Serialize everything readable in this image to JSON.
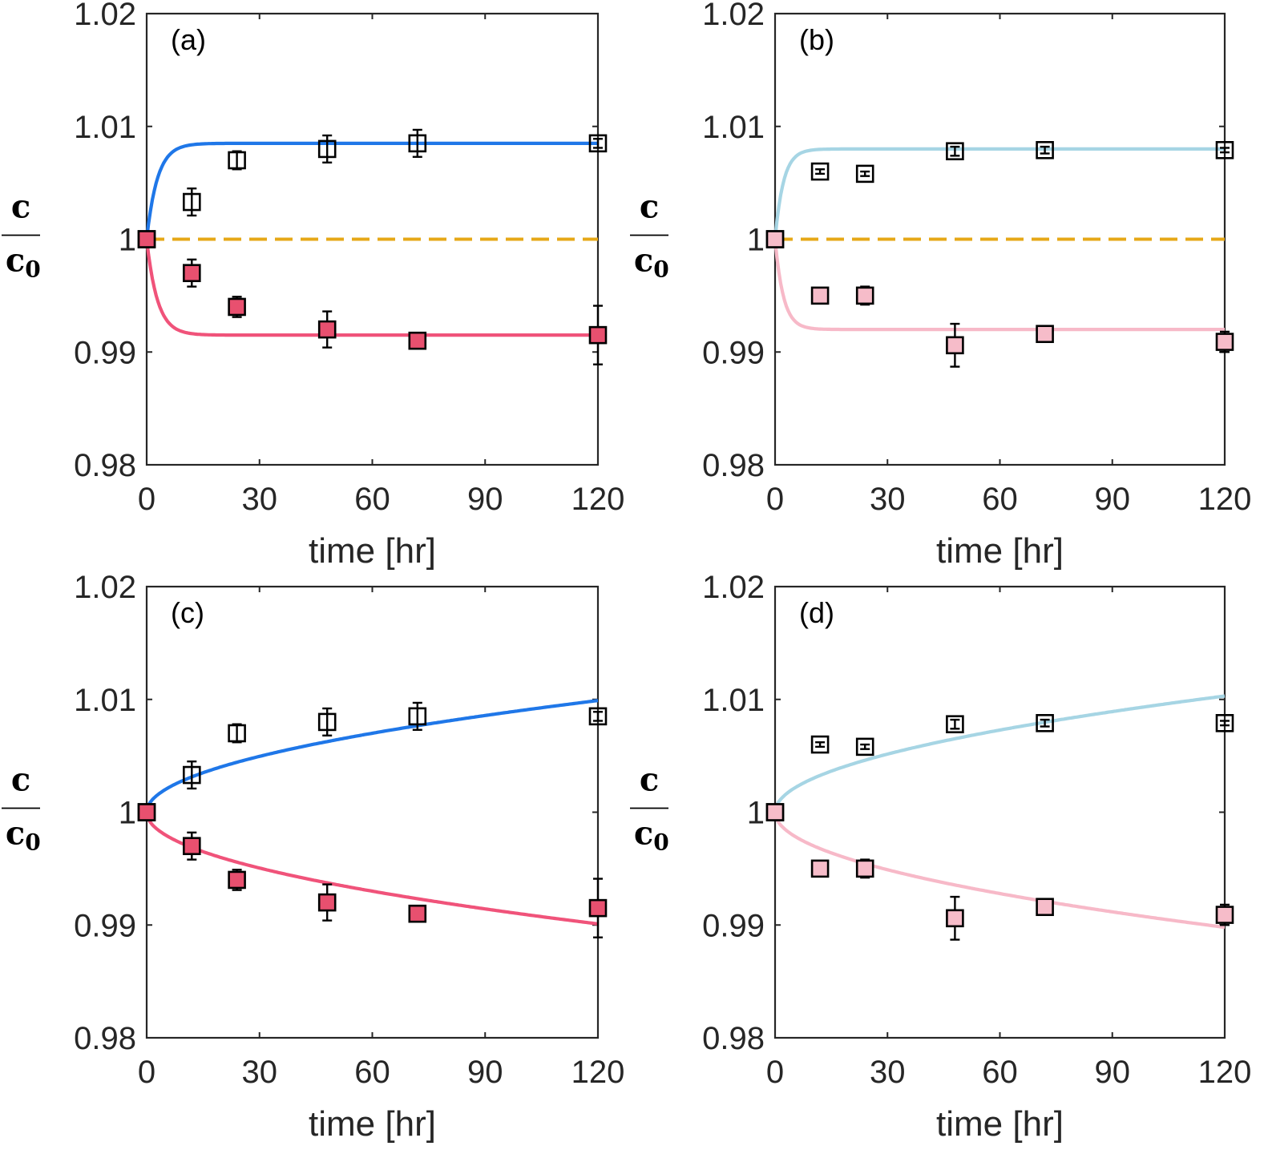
{
  "chart_data": [
    {
      "panel": "(a)",
      "type": "scatter",
      "xlabel": "time [hr]",
      "ylabel": {
        "numerator": "c",
        "denominator": "c",
        "subscript": "0"
      },
      "xlim": [
        0,
        120
      ],
      "ylim": [
        0.98,
        1.02
      ],
      "xticks": [
        "0",
        "30",
        "60",
        "90",
        "120"
      ],
      "yticks": [
        "0.98",
        "0.99",
        "1",
        "1.01",
        "1.02"
      ],
      "curve_model": "exponential",
      "series": [
        {
          "name": "upper",
          "marker": "open-square",
          "curve_color": "#1f77e8",
          "x": [
            0,
            12,
            24,
            48,
            72,
            120
          ],
          "y": [
            1.0,
            1.0033,
            1.007,
            1.008,
            1.0085,
            1.0085
          ],
          "err": [
            0.0,
            0.0012,
            0.0008,
            0.0012,
            0.0012,
            0.0004
          ],
          "fit_final": 1.0085,
          "fit_rate": 0.35
        },
        {
          "name": "lower",
          "marker": "filled-square",
          "marker_color": "#e8506f",
          "curve_color": "#f0537a",
          "x": [
            0,
            12,
            24,
            48,
            72,
            120
          ],
          "y": [
            1.0,
            0.997,
            0.994,
            0.992,
            0.991,
            0.9915
          ],
          "err": [
            0.0,
            0.0012,
            0.0009,
            0.0016,
            0.0005,
            0.0026
          ],
          "fit_final": 0.9915,
          "fit_rate": 0.35
        }
      ],
      "reference_line": {
        "y": 1.0,
        "style": "dashed",
        "color": "#e6a817"
      }
    },
    {
      "panel": "(b)",
      "type": "scatter",
      "xlabel": "time [hr]",
      "ylabel": {
        "numerator": "c",
        "denominator": "c",
        "subscript": "0"
      },
      "xlim": [
        0,
        120
      ],
      "ylim": [
        0.98,
        1.02
      ],
      "xticks": [
        "0",
        "30",
        "60",
        "90",
        "120"
      ],
      "yticks": [
        "0.98",
        "0.99",
        "1",
        "1.01",
        "1.02"
      ],
      "curve_model": "exponential",
      "series": [
        {
          "name": "upper",
          "marker": "open-square",
          "curve_color": "#a6d5e4",
          "x": [
            0,
            12,
            24,
            48,
            72,
            120
          ],
          "y": [
            1.0,
            1.006,
            1.0058,
            1.0078,
            1.0079,
            1.0079
          ],
          "err": [
            0.0,
            0.0002,
            0.0002,
            0.0004,
            0.0003,
            0.0002
          ],
          "fit_final": 1.008,
          "fit_rate": 0.45
        },
        {
          "name": "lower",
          "marker": "filled-square",
          "marker_color": "#f6bcc9",
          "curve_color": "#f7b9c8",
          "x": [
            0,
            12,
            24,
            48,
            72,
            120
          ],
          "y": [
            1.0,
            0.995,
            0.995,
            0.9906,
            0.9916,
            0.9909
          ],
          "err": [
            0.0,
            0.0002,
            0.0008,
            0.0019,
            0.0003,
            0.0009
          ],
          "fit_final": 0.992,
          "fit_rate": 0.45
        }
      ],
      "reference_line": {
        "y": 1.0,
        "style": "dashed",
        "color": "#e6a817"
      }
    },
    {
      "panel": "(c)",
      "type": "scatter",
      "xlabel": "time [hr]",
      "ylabel": {
        "numerator": "c",
        "denominator": "c",
        "subscript": "0"
      },
      "xlim": [
        0,
        120
      ],
      "ylim": [
        0.98,
        1.02
      ],
      "xticks": [
        "0",
        "30",
        "60",
        "90",
        "120"
      ],
      "yticks": [
        "0.98",
        "0.99",
        "1",
        "1.01",
        "1.02"
      ],
      "curve_model": "sqrt",
      "series": [
        {
          "name": "upper",
          "marker": "open-square",
          "curve_color": "#1f77e8",
          "x": [
            0,
            12,
            24,
            48,
            72,
            120
          ],
          "y": [
            1.0,
            1.0033,
            1.007,
            1.008,
            1.0085,
            1.0085
          ],
          "err": [
            0.0,
            0.0012,
            0.0008,
            0.0012,
            0.0012,
            0.0004
          ],
          "fit_final": 1.0099
        },
        {
          "name": "lower",
          "marker": "filled-square",
          "marker_color": "#e8506f",
          "curve_color": "#f0537a",
          "x": [
            0,
            12,
            24,
            48,
            72,
            120
          ],
          "y": [
            1.0,
            0.997,
            0.994,
            0.992,
            0.991,
            0.9915
          ],
          "err": [
            0.0,
            0.0012,
            0.0009,
            0.0016,
            0.0005,
            0.0026
          ],
          "fit_final": 0.9901
        }
      ]
    },
    {
      "panel": "(d)",
      "type": "scatter",
      "xlabel": "time [hr]",
      "ylabel": {
        "numerator": "c",
        "denominator": "c",
        "subscript": "0"
      },
      "xlim": [
        0,
        120
      ],
      "ylim": [
        0.98,
        1.02
      ],
      "xticks": [
        "0",
        "30",
        "60",
        "90",
        "120"
      ],
      "yticks": [
        "0.98",
        "0.99",
        "1",
        "1.01",
        "1.02"
      ],
      "curve_model": "sqrt",
      "series": [
        {
          "name": "upper",
          "marker": "open-square",
          "curve_color": "#a6d5e4",
          "x": [
            0,
            12,
            24,
            48,
            72,
            120
          ],
          "y": [
            1.0,
            1.006,
            1.0058,
            1.0078,
            1.0079,
            1.0079
          ],
          "err": [
            0.0,
            0.0002,
            0.0002,
            0.0004,
            0.0003,
            0.0002
          ],
          "fit_final": 1.0103
        },
        {
          "name": "lower",
          "marker": "filled-square",
          "marker_color": "#f6bcc9",
          "curve_color": "#f7b9c8",
          "x": [
            0,
            12,
            24,
            48,
            72,
            120
          ],
          "y": [
            1.0,
            0.995,
            0.995,
            0.9906,
            0.9916,
            0.9909
          ],
          "err": [
            0.0,
            0.0002,
            0.0008,
            0.0019,
            0.0003,
            0.0009
          ],
          "fit_final": 0.9898
        }
      ]
    }
  ]
}
